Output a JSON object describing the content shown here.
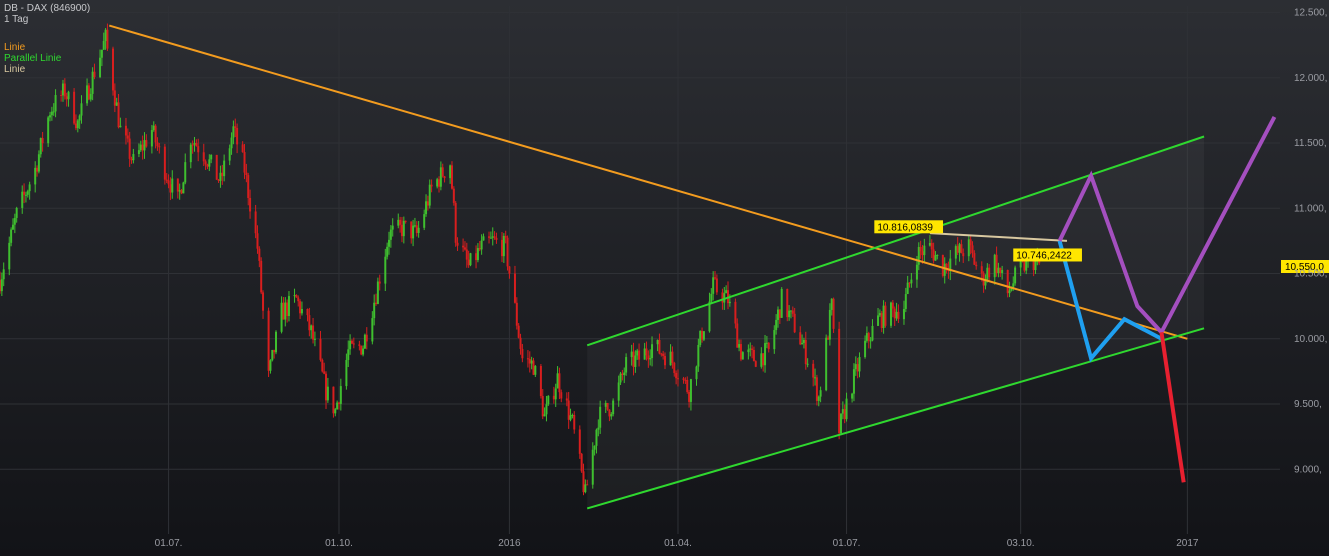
{
  "header": {
    "title": "DB - DAX (846900)",
    "interval": "1 Tag"
  },
  "legend": [
    {
      "label": "Linie",
      "color": "#f39c1f"
    },
    {
      "label": "Parallel Linie",
      "color": "#2fd82f"
    },
    {
      "label": "Linie",
      "color": "#d8c8a0"
    }
  ],
  "colors": {
    "background_top": "#2c2e33",
    "background_bottom": "#121317",
    "grid": "#2f3136",
    "up_candle": "#3fbf2f",
    "down_candle": "#d81e1e",
    "trendline": "#f39c1f",
    "channel": "#2fd82f",
    "top_line": "#d8c8a0",
    "scenario_blue": "#1fa0f0",
    "scenario_purple": "#a44fbf",
    "scenario_red": "#e82030",
    "label_bg": "#ffe600",
    "price_bg": "#ffe600"
  },
  "chart_data": {
    "type": "candlestick",
    "y_axis": {
      "ticks": [
        12500,
        12000,
        11500,
        11000,
        10500,
        10000,
        9500,
        9000
      ],
      "tick_labels": [
        "12.500,",
        "12.000,",
        "11.500,",
        "11.000,",
        "10.500,",
        "10.000,",
        "9.500,",
        "9.000,"
      ],
      "range": [
        8550,
        12550
      ],
      "position": "right"
    },
    "x_axis": {
      "range": [
        "2015-04-01",
        "2017-02-20"
      ],
      "ticks": [
        {
          "date": "2015-07-01",
          "label": "01.07."
        },
        {
          "date": "2015-10-01",
          "label": "01.10."
        },
        {
          "date": "2016-01-01",
          "label": "2016"
        },
        {
          "date": "2016-04-01",
          "label": "01.04."
        },
        {
          "date": "2016-07-01",
          "label": "01.07."
        },
        {
          "date": "2016-10-03",
          "label": "03.10."
        },
        {
          "date": "2017-01-01",
          "label": "2017"
        }
      ]
    },
    "grid": true,
    "price_path": [
      [
        "2015-04-01",
        10450
      ],
      [
        "2015-04-10",
        10950
      ],
      [
        "2015-04-20",
        11300
      ],
      [
        "2015-04-28",
        11750
      ],
      [
        "2015-05-06",
        11900
      ],
      [
        "2015-05-13",
        11650
      ],
      [
        "2015-05-22",
        12050
      ],
      [
        "2015-05-28",
        12300
      ],
      [
        "2015-06-05",
        11600
      ],
      [
        "2015-06-12",
        11350
      ],
      [
        "2015-06-22",
        11600
      ],
      [
        "2015-06-29",
        11300
      ],
      [
        "2015-07-06",
        11050
      ],
      [
        "2015-07-13",
        11550
      ],
      [
        "2015-07-21",
        11400
      ],
      [
        "2015-07-29",
        11200
      ],
      [
        "2015-08-05",
        11600
      ],
      [
        "2015-08-11",
        11300
      ],
      [
        "2015-08-18",
        10700
      ],
      [
        "2015-08-24",
        9700
      ],
      [
        "2015-08-31",
        10200
      ],
      [
        "2015-09-08",
        10300
      ],
      [
        "2015-09-16",
        10050
      ],
      [
        "2015-09-24",
        9600
      ],
      [
        "2015-09-29",
        9450
      ],
      [
        "2015-10-06",
        9900
      ],
      [
        "2015-10-14",
        9950
      ],
      [
        "2015-10-21",
        10350
      ],
      [
        "2015-10-28",
        10800
      ],
      [
        "2015-11-05",
        10850
      ],
      [
        "2015-11-12",
        10800
      ],
      [
        "2015-11-20",
        11150
      ],
      [
        "2015-11-30",
        11350
      ],
      [
        "2015-12-03",
        10800
      ],
      [
        "2015-12-10",
        10550
      ],
      [
        "2015-12-17",
        10700
      ],
      [
        "2015-12-23",
        10750
      ],
      [
        "2015-12-30",
        10700
      ],
      [
        "2016-01-08",
        9850
      ],
      [
        "2016-01-14",
        9800
      ],
      [
        "2016-01-20",
        9400
      ],
      [
        "2016-01-27",
        9700
      ],
      [
        "2016-02-04",
        9350
      ],
      [
        "2016-02-11",
        8800
      ],
      [
        "2016-02-18",
        9400
      ],
      [
        "2016-02-26",
        9500
      ],
      [
        "2016-03-04",
        9800
      ],
      [
        "2016-03-11",
        9850
      ],
      [
        "2016-03-18",
        9950
      ],
      [
        "2016-03-28",
        9850
      ],
      [
        "2016-04-07",
        9600
      ],
      [
        "2016-04-14",
        10050
      ],
      [
        "2016-04-20",
        10400
      ],
      [
        "2016-04-28",
        10300
      ],
      [
        "2016-05-05",
        9900
      ],
      [
        "2016-05-12",
        9850
      ],
      [
        "2016-05-20",
        9900
      ],
      [
        "2016-05-27",
        10300
      ],
      [
        "2016-06-03",
        10100
      ],
      [
        "2016-06-10",
        9850
      ],
      [
        "2016-06-16",
        9550
      ],
      [
        "2016-06-23",
        10250
      ],
      [
        "2016-06-27",
        9300
      ],
      [
        "2016-07-04",
        9650
      ],
      [
        "2016-07-11",
        9950
      ],
      [
        "2016-07-18",
        10150
      ],
      [
        "2016-07-25",
        10200
      ],
      [
        "2016-08-01",
        10250
      ],
      [
        "2016-08-08",
        10650
      ],
      [
        "2016-08-15",
        10700
      ],
      [
        "2016-08-22",
        10550
      ],
      [
        "2016-08-29",
        10650
      ],
      [
        "2016-09-05",
        10700
      ],
      [
        "2016-09-12",
        10450
      ],
      [
        "2016-09-19",
        10600
      ],
      [
        "2016-09-26",
        10350
      ],
      [
        "2016-10-03",
        10550
      ],
      [
        "2016-10-10",
        10600
      ],
      [
        "2016-10-14",
        10550
      ]
    ],
    "lines": [
      {
        "legend": 0,
        "points": [
          [
            "2015-05-30",
            12400
          ],
          [
            "2017-01-01",
            10000
          ]
        ]
      },
      {
        "legend": 1,
        "points": [
          [
            "2016-02-12",
            8700
          ],
          [
            "2017-01-10",
            10080
          ]
        ]
      },
      {
        "legend": 1,
        "points": [
          [
            "2016-02-12",
            9950
          ],
          [
            "2017-01-10",
            11550
          ]
        ]
      },
      {
        "legend": 2,
        "points": [
          [
            "2016-08-15",
            10810
          ],
          [
            "2016-10-28",
            10750
          ]
        ]
      }
    ],
    "scenarios": [
      {
        "color": "scenario_blue",
        "points": [
          [
            "2016-10-24",
            10750
          ],
          [
            "2016-11-10",
            9850
          ],
          [
            "2016-11-28",
            10150
          ],
          [
            "2016-12-18",
            10000
          ]
        ]
      },
      {
        "color": "scenario_purple",
        "points": [
          [
            "2016-10-24",
            10750
          ],
          [
            "2016-11-10",
            11250
          ],
          [
            "2016-12-05",
            10250
          ],
          [
            "2016-12-18",
            10050
          ],
          [
            "2017-02-17",
            11700
          ]
        ]
      },
      {
        "color": "scenario_red",
        "points": [
          [
            "2016-12-18",
            10050
          ],
          [
            "2016-12-30",
            8900
          ]
        ]
      }
    ],
    "annotations": [
      {
        "text": "10.816,0839",
        "date": "2016-07-16",
        "value": 10816
      },
      {
        "text": "10.746,2422",
        "date": "2016-09-29",
        "value": 10600
      }
    ],
    "last_price": {
      "text": "10.550,0",
      "value": 10550
    }
  }
}
